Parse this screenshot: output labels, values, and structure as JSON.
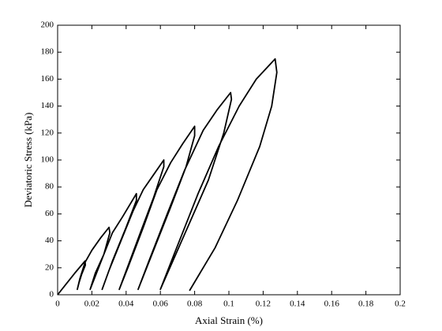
{
  "chart_data": {
    "type": "line",
    "x_label": "Axial Strain (%)",
    "y_label": "Deviatoric Stress (kPa)",
    "xlim": [
      0,
      0.2
    ],
    "ylim": [
      0,
      200
    ],
    "xticks": [
      0,
      0.02,
      0.04,
      0.06,
      0.08,
      0.1,
      0.12,
      0.14,
      0.16,
      0.18,
      0.2
    ],
    "yticks": [
      0,
      20,
      40,
      60,
      80,
      100,
      120,
      140,
      160,
      180,
      200
    ],
    "series": [
      {
        "color": "#000000",
        "x": [
          0,
          0.005,
          0.01,
          0.016,
          0.0162,
          0.014,
          0.0125,
          0.0115,
          0.013,
          0.016,
          0.02,
          0.025,
          0.03,
          0.0305,
          0.027,
          0.023,
          0.019,
          0.022,
          0.027,
          0.032,
          0.038,
          0.046,
          0.046,
          0.04,
          0.032,
          0.026,
          0.03,
          0.037,
          0.044,
          0.05,
          0.056,
          0.062,
          0.062,
          0.056,
          0.048,
          0.036,
          0.041,
          0.05,
          0.058,
          0.066,
          0.073,
          0.08,
          0.08,
          0.075,
          0.066,
          0.047,
          0.053,
          0.064,
          0.074,
          0.085,
          0.093,
          0.101,
          0.1015,
          0.097,
          0.088,
          0.06,
          0.068,
          0.082,
          0.094,
          0.106,
          0.116,
          0.127,
          0.128,
          0.125,
          0.118,
          0.105,
          0.092,
          0.077
        ],
        "values": [
          0,
          8,
          16,
          25,
          22,
          15,
          9,
          4,
          12,
          24,
          33,
          42,
          50,
          46,
          30,
          17,
          4,
          16,
          30,
          46,
          58,
          75,
          70,
          50,
          25,
          4,
          18,
          40,
          62,
          78,
          89,
          100,
          95,
          72,
          45,
          4,
          20,
          50,
          78,
          98,
          112,
          125,
          118,
          95,
          65,
          4,
          24,
          60,
          92,
          122,
          137,
          150,
          145,
          120,
          85,
          4,
          30,
          75,
          110,
          140,
          160,
          175,
          165,
          140,
          110,
          70,
          35,
          3
        ]
      }
    ]
  }
}
